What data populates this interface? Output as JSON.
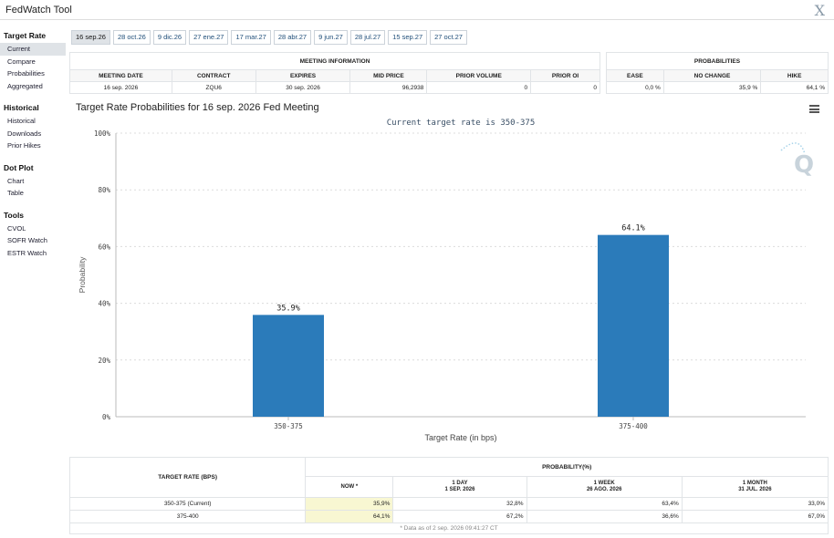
{
  "app": {
    "title": "FedWatch Tool",
    "close_icon": "close-icon"
  },
  "sidebar": {
    "groups": [
      {
        "head": "Target Rate",
        "items": [
          "Current",
          "Compare",
          "Probabilities",
          "Aggregated"
        ]
      },
      {
        "head": "Historical",
        "items": [
          "Historical",
          "Downloads",
          "Prior Hikes"
        ]
      },
      {
        "head": "Dot Plot",
        "items": [
          "Chart",
          "Table"
        ]
      },
      {
        "head": "Tools",
        "items": [
          "CVOL",
          "SOFR Watch",
          "ESTR Watch"
        ]
      }
    ]
  },
  "tabs": [
    "16 sep.26",
    "28 oct.26",
    "9 dic.26",
    "27 ene.27",
    "17 mar.27",
    "28 abr.27",
    "9 jun.27",
    "28 jul.27",
    "15 sep.27",
    "27 oct.27"
  ],
  "meeting_info": {
    "header": "MEETING INFORMATION",
    "columns": [
      "MEETING DATE",
      "CONTRACT",
      "EXPIRES",
      "MID PRICE",
      "PRIOR VOLUME",
      "PRIOR OI"
    ],
    "row": [
      "16 sep. 2026",
      "ZQU6",
      "30 sep. 2026",
      "96,2938",
      "0",
      "0"
    ]
  },
  "probabilities": {
    "header": "PROBABILITIES",
    "columns": [
      "EASE",
      "NO CHANGE",
      "HIKE"
    ],
    "row": [
      "0,0 %",
      "35,9 %",
      "64,1 %"
    ]
  },
  "chart_data": {
    "type": "bar",
    "title": "Target Rate Probabilities for 16 sep. 2026 Fed Meeting",
    "subtitle": "Current target rate is 350-375",
    "xlabel": "Target Rate (in bps)",
    "ylabel": "Probability",
    "categories": [
      "350-375",
      "375-400"
    ],
    "values": [
      35.9,
      64.1
    ],
    "data_labels": [
      "35.9%",
      "64.1%"
    ],
    "ylim": [
      0,
      100
    ],
    "yticks": [
      "0%",
      "20%",
      "40%",
      "60%",
      "80%",
      "100%"
    ],
    "bar_color": "#2b7bba",
    "grid": true
  },
  "bottom_table": {
    "col_target": "TARGET RATE (BPS)",
    "col_prob": "PROBABILITY(%)",
    "sub_headers": [
      {
        "label": "NOW *",
        "date": ""
      },
      {
        "label": "1 DAY",
        "date": "1 SEP. 2026"
      },
      {
        "label": "1 WEEK",
        "date": "26 AGO. 2026"
      },
      {
        "label": "1 MONTH",
        "date": "31 JUL. 2026"
      }
    ],
    "rows": [
      {
        "rate": "350-375 (Current)",
        "values": [
          "35,9%",
          "32,8%",
          "63,4%",
          "33,0%"
        ]
      },
      {
        "rate": "375-400",
        "values": [
          "64,1%",
          "67,2%",
          "36,6%",
          "67,0%"
        ]
      }
    ],
    "footnote": "* Data as of 2 sep. 2026 09:41:27 CT"
  },
  "menu_icon": "hamburger-menu-icon",
  "watermark": "Q"
}
